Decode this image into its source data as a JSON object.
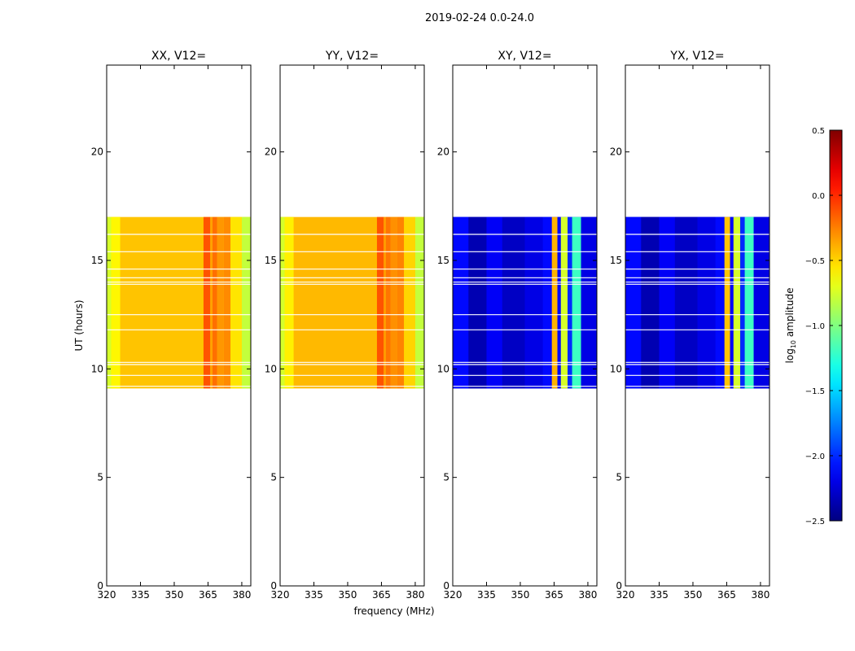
{
  "suptitle": "2019-02-24 0.0-24.0",
  "chart_data": {
    "type": "heatmap",
    "ylabel": "UT (hours)",
    "xlabel": "frequency (MHz)",
    "xlim": [
      320,
      384
    ],
    "ylim": [
      0,
      24
    ],
    "xticks": [
      320,
      335,
      350,
      365,
      380
    ],
    "xtick_labels": [
      "320",
      "335",
      "350",
      "365",
      "380"
    ],
    "yticks": [
      0,
      5,
      10,
      15,
      20
    ],
    "ytick_labels": [
      "0",
      "5",
      "10",
      "15",
      "20"
    ],
    "data_time_range": [
      9.1,
      17.0
    ],
    "gap_times": [
      16.2,
      15.4,
      14.6,
      14.2,
      14.0,
      13.9,
      12.5,
      11.8,
      10.3,
      10.2,
      9.7,
      9.2
    ],
    "panels": [
      {
        "title": "XX, V12=",
        "base_level": -0.45,
        "features": [
          {
            "f_start": 320,
            "f_end": 322,
            "level": -0.75
          },
          {
            "f_start": 322,
            "f_end": 326,
            "level": -0.6
          },
          {
            "f_start": 363,
            "f_end": 366,
            "level": -0.12
          },
          {
            "f_start": 366,
            "f_end": 367,
            "level": -0.35
          },
          {
            "f_start": 367,
            "f_end": 369,
            "level": -0.2
          },
          {
            "f_start": 369,
            "f_end": 372,
            "level": -0.32
          },
          {
            "f_start": 372,
            "f_end": 375,
            "level": -0.28
          },
          {
            "f_start": 375,
            "f_end": 380,
            "level": -0.55
          },
          {
            "f_start": 380,
            "f_end": 384,
            "level": -0.8
          }
        ]
      },
      {
        "title": "YY, V12=",
        "base_level": -0.42,
        "features": [
          {
            "f_start": 320,
            "f_end": 322,
            "level": -0.75
          },
          {
            "f_start": 322,
            "f_end": 326,
            "level": -0.58
          },
          {
            "f_start": 363,
            "f_end": 366,
            "level": -0.12
          },
          {
            "f_start": 366,
            "f_end": 367,
            "level": -0.33
          },
          {
            "f_start": 367,
            "f_end": 369,
            "level": -0.22
          },
          {
            "f_start": 369,
            "f_end": 372,
            "level": -0.3
          },
          {
            "f_start": 372,
            "f_end": 375,
            "level": -0.26
          },
          {
            "f_start": 375,
            "f_end": 380,
            "level": -0.5
          },
          {
            "f_start": 380,
            "f_end": 384,
            "level": -0.8
          }
        ]
      },
      {
        "title": "XY, V12=",
        "base_level": -2.25,
        "features": [
          {
            "f_start": 320,
            "f_end": 327,
            "level": -2.1
          },
          {
            "f_start": 327,
            "f_end": 335,
            "level": -2.35
          },
          {
            "f_start": 335,
            "f_end": 342,
            "level": -2.15
          },
          {
            "f_start": 342,
            "f_end": 352,
            "level": -2.3
          },
          {
            "f_start": 352,
            "f_end": 360,
            "level": -2.2
          },
          {
            "f_start": 360,
            "f_end": 364,
            "level": -2.1
          },
          {
            "f_start": 364,
            "f_end": 366.5,
            "level": -0.4
          },
          {
            "f_start": 366.5,
            "f_end": 368,
            "level": -2.1
          },
          {
            "f_start": 368,
            "f_end": 371,
            "level": -0.75
          },
          {
            "f_start": 371,
            "f_end": 373,
            "level": -2.0
          },
          {
            "f_start": 373,
            "f_end": 377,
            "level": -1.2
          },
          {
            "f_start": 377,
            "f_end": 384,
            "level": -2.2
          }
        ]
      },
      {
        "title": "YX, V12=",
        "base_level": -2.25,
        "features": [
          {
            "f_start": 320,
            "f_end": 327,
            "level": -2.1
          },
          {
            "f_start": 327,
            "f_end": 335,
            "level": -2.35
          },
          {
            "f_start": 335,
            "f_end": 342,
            "level": -2.15
          },
          {
            "f_start": 342,
            "f_end": 352,
            "level": -2.3
          },
          {
            "f_start": 352,
            "f_end": 360,
            "level": -2.2
          },
          {
            "f_start": 360,
            "f_end": 364,
            "level": -2.1
          },
          {
            "f_start": 364,
            "f_end": 366.5,
            "level": -0.45
          },
          {
            "f_start": 366.5,
            "f_end": 368,
            "level": -2.1
          },
          {
            "f_start": 368,
            "f_end": 371,
            "level": -0.75
          },
          {
            "f_start": 371,
            "f_end": 373,
            "level": -2.0
          },
          {
            "f_start": 373,
            "f_end": 377,
            "level": -1.2
          },
          {
            "f_start": 377,
            "f_end": 384,
            "level": -2.2
          }
        ]
      }
    ],
    "colorbar": {
      "label": "log10 amplitude",
      "label_base": "log",
      "label_sub": "10",
      "label_rest": " amplitude",
      "range": [
        -2.5,
        0.5
      ],
      "ticks": [
        0.5,
        0.0,
        -0.5,
        -1.0,
        -1.5,
        -2.0,
        -2.5
      ],
      "tick_labels": [
        "0.5",
        "0.0",
        "−0.5",
        "−1.0",
        "−1.5",
        "−2.0",
        "−2.5"
      ],
      "colormap": "jet"
    }
  }
}
